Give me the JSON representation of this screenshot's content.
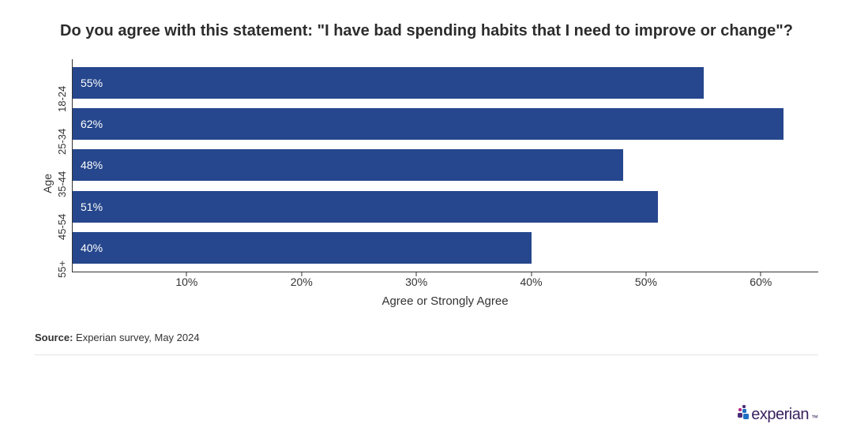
{
  "chart": {
    "type": "bar-horizontal",
    "title": "Do you agree with this statement: \"I have bad spending habits that I need to improve or change\"?",
    "y_axis_label": "Age",
    "x_axis_label": "Agree or Strongly Agree",
    "categories": [
      "18-24",
      "25-34",
      "35-44",
      "45-54",
      "55+"
    ],
    "values": [
      55,
      62,
      48,
      51,
      40
    ],
    "value_labels": [
      "55%",
      "62%",
      "48%",
      "51%",
      "40%"
    ],
    "bar_color": "#26478d",
    "bar_label_color": "#ffffff",
    "background_color": "#ffffff",
    "axis_color": "#333333",
    "x_ticks": [
      10,
      20,
      30,
      40,
      50,
      60
    ],
    "x_tick_labels": [
      "10%",
      "20%",
      "30%",
      "40%",
      "50%",
      "60%"
    ],
    "x_max": 65,
    "title_fontsize": 20,
    "label_fontsize": 14,
    "tick_fontsize": 14
  },
  "source": {
    "label": "Source:",
    "text": "Experian survey, May 2024"
  },
  "logo": {
    "text": "experian",
    "tm": "™",
    "colors": {
      "purple": "#4a2e7a",
      "magenta": "#b82a8a",
      "blue": "#1f6fc2",
      "textcolor": "#3a2360"
    }
  }
}
